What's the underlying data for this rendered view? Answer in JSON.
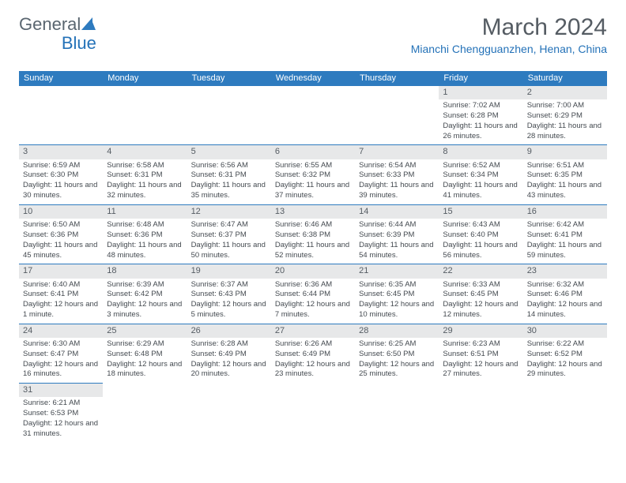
{
  "brand": {
    "part1": "General",
    "part2": "Blue"
  },
  "title": "March 2024",
  "location": "Mianchi Chengguanzhen, Henan, China",
  "colors": {
    "header_bg": "#2e7bbf",
    "header_text": "#ffffff",
    "daynum_bg": "#e7e8e9",
    "text": "#555c63",
    "accent": "#2472b8",
    "body_text": "#444a50"
  },
  "weekdays": [
    "Sunday",
    "Monday",
    "Tuesday",
    "Wednesday",
    "Thursday",
    "Friday",
    "Saturday"
  ],
  "weeks": [
    [
      {
        "n": "",
        "sr": "",
        "ss": "",
        "dl": ""
      },
      {
        "n": "",
        "sr": "",
        "ss": "",
        "dl": ""
      },
      {
        "n": "",
        "sr": "",
        "ss": "",
        "dl": ""
      },
      {
        "n": "",
        "sr": "",
        "ss": "",
        "dl": ""
      },
      {
        "n": "",
        "sr": "",
        "ss": "",
        "dl": ""
      },
      {
        "n": "1",
        "sr": "Sunrise: 7:02 AM",
        "ss": "Sunset: 6:28 PM",
        "dl": "Daylight: 11 hours and 26 minutes."
      },
      {
        "n": "2",
        "sr": "Sunrise: 7:00 AM",
        "ss": "Sunset: 6:29 PM",
        "dl": "Daylight: 11 hours and 28 minutes."
      }
    ],
    [
      {
        "n": "3",
        "sr": "Sunrise: 6:59 AM",
        "ss": "Sunset: 6:30 PM",
        "dl": "Daylight: 11 hours and 30 minutes."
      },
      {
        "n": "4",
        "sr": "Sunrise: 6:58 AM",
        "ss": "Sunset: 6:31 PM",
        "dl": "Daylight: 11 hours and 32 minutes."
      },
      {
        "n": "5",
        "sr": "Sunrise: 6:56 AM",
        "ss": "Sunset: 6:31 PM",
        "dl": "Daylight: 11 hours and 35 minutes."
      },
      {
        "n": "6",
        "sr": "Sunrise: 6:55 AM",
        "ss": "Sunset: 6:32 PM",
        "dl": "Daylight: 11 hours and 37 minutes."
      },
      {
        "n": "7",
        "sr": "Sunrise: 6:54 AM",
        "ss": "Sunset: 6:33 PM",
        "dl": "Daylight: 11 hours and 39 minutes."
      },
      {
        "n": "8",
        "sr": "Sunrise: 6:52 AM",
        "ss": "Sunset: 6:34 PM",
        "dl": "Daylight: 11 hours and 41 minutes."
      },
      {
        "n": "9",
        "sr": "Sunrise: 6:51 AM",
        "ss": "Sunset: 6:35 PM",
        "dl": "Daylight: 11 hours and 43 minutes."
      }
    ],
    [
      {
        "n": "10",
        "sr": "Sunrise: 6:50 AM",
        "ss": "Sunset: 6:36 PM",
        "dl": "Daylight: 11 hours and 45 minutes."
      },
      {
        "n": "11",
        "sr": "Sunrise: 6:48 AM",
        "ss": "Sunset: 6:36 PM",
        "dl": "Daylight: 11 hours and 48 minutes."
      },
      {
        "n": "12",
        "sr": "Sunrise: 6:47 AM",
        "ss": "Sunset: 6:37 PM",
        "dl": "Daylight: 11 hours and 50 minutes."
      },
      {
        "n": "13",
        "sr": "Sunrise: 6:46 AM",
        "ss": "Sunset: 6:38 PM",
        "dl": "Daylight: 11 hours and 52 minutes."
      },
      {
        "n": "14",
        "sr": "Sunrise: 6:44 AM",
        "ss": "Sunset: 6:39 PM",
        "dl": "Daylight: 11 hours and 54 minutes."
      },
      {
        "n": "15",
        "sr": "Sunrise: 6:43 AM",
        "ss": "Sunset: 6:40 PM",
        "dl": "Daylight: 11 hours and 56 minutes."
      },
      {
        "n": "16",
        "sr": "Sunrise: 6:42 AM",
        "ss": "Sunset: 6:41 PM",
        "dl": "Daylight: 11 hours and 59 minutes."
      }
    ],
    [
      {
        "n": "17",
        "sr": "Sunrise: 6:40 AM",
        "ss": "Sunset: 6:41 PM",
        "dl": "Daylight: 12 hours and 1 minute."
      },
      {
        "n": "18",
        "sr": "Sunrise: 6:39 AM",
        "ss": "Sunset: 6:42 PM",
        "dl": "Daylight: 12 hours and 3 minutes."
      },
      {
        "n": "19",
        "sr": "Sunrise: 6:37 AM",
        "ss": "Sunset: 6:43 PM",
        "dl": "Daylight: 12 hours and 5 minutes."
      },
      {
        "n": "20",
        "sr": "Sunrise: 6:36 AM",
        "ss": "Sunset: 6:44 PM",
        "dl": "Daylight: 12 hours and 7 minutes."
      },
      {
        "n": "21",
        "sr": "Sunrise: 6:35 AM",
        "ss": "Sunset: 6:45 PM",
        "dl": "Daylight: 12 hours and 10 minutes."
      },
      {
        "n": "22",
        "sr": "Sunrise: 6:33 AM",
        "ss": "Sunset: 6:45 PM",
        "dl": "Daylight: 12 hours and 12 minutes."
      },
      {
        "n": "23",
        "sr": "Sunrise: 6:32 AM",
        "ss": "Sunset: 6:46 PM",
        "dl": "Daylight: 12 hours and 14 minutes."
      }
    ],
    [
      {
        "n": "24",
        "sr": "Sunrise: 6:30 AM",
        "ss": "Sunset: 6:47 PM",
        "dl": "Daylight: 12 hours and 16 minutes."
      },
      {
        "n": "25",
        "sr": "Sunrise: 6:29 AM",
        "ss": "Sunset: 6:48 PM",
        "dl": "Daylight: 12 hours and 18 minutes."
      },
      {
        "n": "26",
        "sr": "Sunrise: 6:28 AM",
        "ss": "Sunset: 6:49 PM",
        "dl": "Daylight: 12 hours and 20 minutes."
      },
      {
        "n": "27",
        "sr": "Sunrise: 6:26 AM",
        "ss": "Sunset: 6:49 PM",
        "dl": "Daylight: 12 hours and 23 minutes."
      },
      {
        "n": "28",
        "sr": "Sunrise: 6:25 AM",
        "ss": "Sunset: 6:50 PM",
        "dl": "Daylight: 12 hours and 25 minutes."
      },
      {
        "n": "29",
        "sr": "Sunrise: 6:23 AM",
        "ss": "Sunset: 6:51 PM",
        "dl": "Daylight: 12 hours and 27 minutes."
      },
      {
        "n": "30",
        "sr": "Sunrise: 6:22 AM",
        "ss": "Sunset: 6:52 PM",
        "dl": "Daylight: 12 hours and 29 minutes."
      }
    ],
    [
      {
        "n": "31",
        "sr": "Sunrise: 6:21 AM",
        "ss": "Sunset: 6:53 PM",
        "dl": "Daylight: 12 hours and 31 minutes."
      },
      {
        "n": "",
        "sr": "",
        "ss": "",
        "dl": ""
      },
      {
        "n": "",
        "sr": "",
        "ss": "",
        "dl": ""
      },
      {
        "n": "",
        "sr": "",
        "ss": "",
        "dl": ""
      },
      {
        "n": "",
        "sr": "",
        "ss": "",
        "dl": ""
      },
      {
        "n": "",
        "sr": "",
        "ss": "",
        "dl": ""
      },
      {
        "n": "",
        "sr": "",
        "ss": "",
        "dl": ""
      }
    ]
  ]
}
